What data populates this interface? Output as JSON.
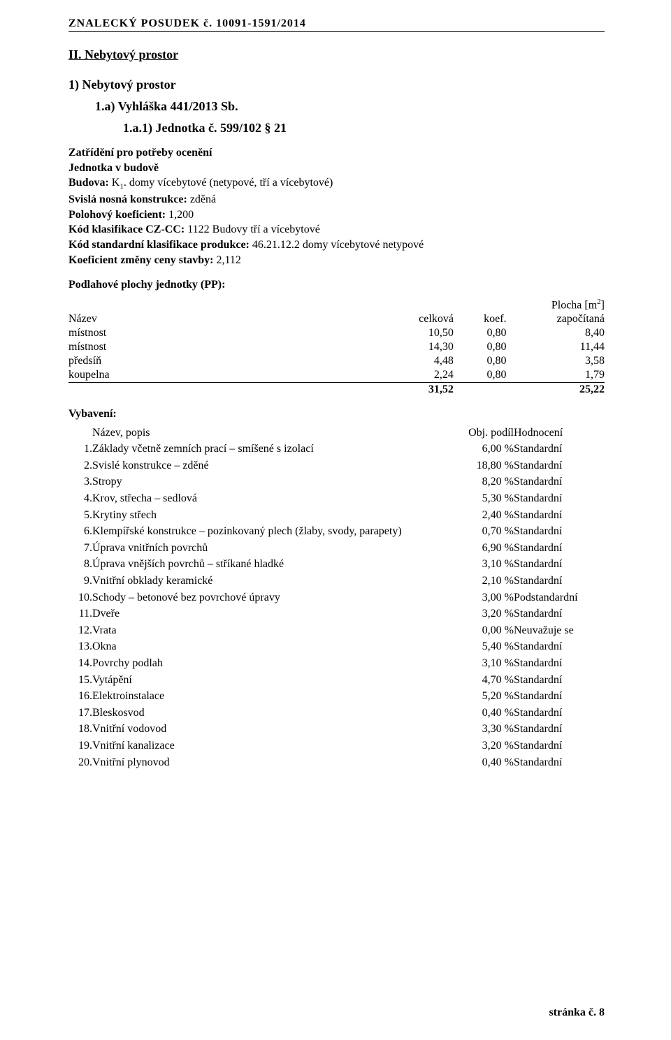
{
  "header": "ZNALECKÝ   POSUDEK č.  10091-1591/2014",
  "title": "II. Nebytový prostor",
  "sub1": "1)  Nebytový prostor",
  "sub2": "1.a)   Vyhláška 441/2013 Sb.",
  "sub3": "1.a.1)  Jednotka č.  599/102 § 21",
  "zatr": "Zatřídění pro potřeby ocenění",
  "lines": {
    "l1a": "Jednotka v budově",
    "l1b": "Budova:",
    "l1c": " K",
    "l1d": "1",
    "l1e": ". domy vícebytové (netypové, tří a vícebytové)",
    "l2a": "Svislá nosná konstrukce:",
    "l2b": " zděná",
    "l3a": "Polohový koeficient:",
    "l3b": " 1,200",
    "l4a": "Kód klasifikace CZ-CC:",
    "l4b": " 1122 Budovy tří a vícebytové",
    "l5a": "Kód standardní klasifikace produkce:",
    "l5b": " 46.21.12.2     domy vícebytové netypové",
    "l6a": "Koeficient změny ceny stavby:",
    "l6b": " 2,112"
  },
  "pp_title": "Podlahové plochy jednotky (PP):",
  "pp_header": {
    "plocha": "Plocha [m",
    "sq": "2",
    "close": "]",
    "nazev": "Název",
    "celkova": "celková",
    "koef": "koef.",
    "zap": "započítaná"
  },
  "pp_rows": [
    {
      "n": "místnost",
      "c": "10,50",
      "k": "0,80",
      "z": "8,40"
    },
    {
      "n": "místnost",
      "c": "14,30",
      "k": "0,80",
      "z": "11,44"
    },
    {
      "n": "předsíň",
      "c": "4,48",
      "k": "0,80",
      "z": "3,58"
    },
    {
      "n": "koupelna",
      "c": "2,24",
      "k": "0,80",
      "z": "1,79"
    }
  ],
  "pp_sum": {
    "c": "31,52",
    "z": "25,22"
  },
  "vyb_title": "Vybavení:",
  "vyb_header": {
    "name": "Název, popis",
    "podil": "Obj. podíl",
    "hod": "Hodnocení"
  },
  "vyb_rows": [
    {
      "i": "1.",
      "n": "Základy včetně zemních prací – smíšené s izolací",
      "p": "6,00 %",
      "h": "Standardní"
    },
    {
      "i": "2.",
      "n": "Svislé konstrukce – zděné",
      "p": "18,80 %",
      "h": "Standardní"
    },
    {
      "i": "3.",
      "n": "Stropy",
      "p": "8,20 %",
      "h": "Standardní"
    },
    {
      "i": "4.",
      "n": "Krov, střecha – sedlová",
      "p": "5,30 %",
      "h": "Standardní"
    },
    {
      "i": "5.",
      "n": "Krytiny střech",
      "p": "2,40 %",
      "h": "Standardní"
    },
    {
      "i": "6.",
      "n": "Klempířské konstrukce – pozinkovaný plech (žlaby, svody, parapety)",
      "p": "0,70 %",
      "h": "Standardní"
    },
    {
      "i": "7.",
      "n": "Úprava vnitřních povrchů",
      "p": "6,90 %",
      "h": "Standardní"
    },
    {
      "i": "8.",
      "n": "Úprava vnějších povrchů – stříkané hladké",
      "p": "3,10 %",
      "h": "Standardní"
    },
    {
      "i": "9.",
      "n": "Vnitřní obklady keramické",
      "p": "2,10 %",
      "h": "Standardní"
    },
    {
      "i": "10.",
      "n": "Schody – betonové bez povrchové úpravy",
      "p": "3,00 %",
      "h": "Podstandardní"
    },
    {
      "i": "11.",
      "n": "Dveře",
      "p": "3,20 %",
      "h": "Standardní"
    },
    {
      "i": "12.",
      "n": "Vrata",
      "p": "0,00 %",
      "h": "Neuvažuje se"
    },
    {
      "i": "13.",
      "n": "Okna",
      "p": "5,40 %",
      "h": "Standardní"
    },
    {
      "i": "14.",
      "n": "Povrchy podlah",
      "p": "3,10 %",
      "h": "Standardní"
    },
    {
      "i": "15.",
      "n": "Vytápění",
      "p": "4,70 %",
      "h": "Standardní"
    },
    {
      "i": "16.",
      "n": "Elektroinstalace",
      "p": "5,20 %",
      "h": "Standardní"
    },
    {
      "i": "17.",
      "n": "Bleskosvod",
      "p": "0,40 %",
      "h": "Standardní"
    },
    {
      "i": "18.",
      "n": "Vnitřní vodovod",
      "p": "3,30 %",
      "h": "Standardní"
    },
    {
      "i": "19.",
      "n": "Vnitřní kanalizace",
      "p": "3,20 %",
      "h": "Standardní"
    },
    {
      "i": "20.",
      "n": "Vnitřní plynovod",
      "p": "0,40 %",
      "h": "Standardní"
    }
  ],
  "footer": "stránka č.   8"
}
